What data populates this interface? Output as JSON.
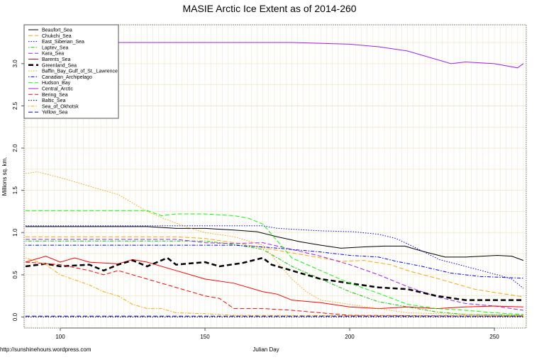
{
  "chart_data": {
    "type": "line",
    "title": "MASIE Arctic Ice Extent as of 2014-260",
    "xlabel": "Julian Day",
    "ylabel": "Millions sq. km.",
    "xlim": [
      87.5,
      261
    ],
    "ylim": [
      -0.13,
      3.46
    ],
    "xticks": [
      100,
      150,
      200,
      250
    ],
    "yticks": [
      0.0,
      0.5,
      1.0,
      1.5,
      2.0,
      2.5,
      3.0
    ],
    "grid": true,
    "legend_position": "top-left",
    "watermark": "http://sunshinehours.wordpress.com",
    "series": [
      {
        "name": "Beaufort_Sea",
        "color": "#000000",
        "style": "solid",
        "points": [
          [
            88,
            1.07
          ],
          [
            130,
            1.07
          ],
          [
            140,
            1.05
          ],
          [
            150,
            1.05
          ],
          [
            160,
            1.03
          ],
          [
            168,
            1.01
          ],
          [
            175,
            0.95
          ],
          [
            183,
            0.89
          ],
          [
            190,
            0.85
          ],
          [
            197,
            0.815
          ],
          [
            205,
            0.83
          ],
          [
            212,
            0.84
          ],
          [
            219,
            0.84
          ],
          [
            225,
            0.78
          ],
          [
            233,
            0.71
          ],
          [
            240,
            0.71
          ],
          [
            251,
            0.73
          ],
          [
            256,
            0.72
          ],
          [
            260,
            0.67
          ]
        ]
      },
      {
        "name": "Chukchi_Sea",
        "color": "#ffa500",
        "style": "dashed",
        "points": [
          [
            88,
            0.95
          ],
          [
            140,
            0.95
          ],
          [
            150,
            0.93
          ],
          [
            160,
            0.88
          ],
          [
            170,
            0.82
          ],
          [
            180,
            0.76
          ],
          [
            190,
            0.7
          ],
          [
            197,
            0.66
          ],
          [
            205,
            0.67
          ],
          [
            214,
            0.62
          ],
          [
            221,
            0.54
          ],
          [
            231,
            0.45
          ],
          [
            243,
            0.33
          ],
          [
            252,
            0.28
          ],
          [
            260,
            0.24
          ]
        ]
      },
      {
        "name": "East_Siberian_Sea",
        "color": "#0000ff",
        "style": "dotted",
        "points": [
          [
            88,
            1.08
          ],
          [
            170,
            1.08
          ],
          [
            175,
            1.05
          ],
          [
            180,
            1.04
          ],
          [
            190,
            1.02
          ],
          [
            201,
            1.01
          ],
          [
            210,
            0.98
          ],
          [
            216,
            0.93
          ],
          [
            221,
            0.85
          ],
          [
            231,
            0.68
          ],
          [
            240,
            0.6
          ],
          [
            251,
            0.5
          ],
          [
            256,
            0.45
          ],
          [
            260,
            0.34
          ]
        ]
      },
      {
        "name": "Laptev_Sea",
        "color": "#00cc00",
        "style": "dotdash",
        "points": [
          [
            88,
            0.9
          ],
          [
            150,
            0.9
          ],
          [
            160,
            0.86
          ],
          [
            170,
            0.8
          ],
          [
            180,
            0.6
          ],
          [
            190,
            0.45
          ],
          [
            200,
            0.3
          ],
          [
            210,
            0.18
          ],
          [
            220,
            0.12
          ],
          [
            230,
            0.06
          ],
          [
            240,
            0.03
          ],
          [
            260,
            0.02
          ]
        ]
      },
      {
        "name": "Kara_Sea",
        "color": "#a020f0",
        "style": "dashed",
        "points": [
          [
            88,
            0.92
          ],
          [
            140,
            0.92
          ],
          [
            150,
            0.88
          ],
          [
            160,
            0.87
          ],
          [
            170,
            0.88
          ],
          [
            180,
            0.8
          ],
          [
            190,
            0.72
          ],
          [
            200,
            0.62
          ],
          [
            210,
            0.5
          ],
          [
            220,
            0.36
          ],
          [
            230,
            0.24
          ],
          [
            240,
            0.16
          ],
          [
            250,
            0.13
          ],
          [
            260,
            0.08
          ]
        ]
      },
      {
        "name": "Barents_Sea",
        "color": "#ff0000",
        "style": "solid",
        "points": [
          [
            88,
            0.65
          ],
          [
            95,
            0.72
          ],
          [
            100,
            0.65
          ],
          [
            105,
            0.7
          ],
          [
            110,
            0.65
          ],
          [
            120,
            0.63
          ],
          [
            125,
            0.68
          ],
          [
            130,
            0.65
          ],
          [
            140,
            0.55
          ],
          [
            150,
            0.45
          ],
          [
            160,
            0.4
          ],
          [
            170,
            0.3
          ],
          [
            175,
            0.27
          ],
          [
            180,
            0.2
          ],
          [
            190,
            0.17
          ],
          [
            200,
            0.12
          ],
          [
            210,
            0.1
          ],
          [
            220,
            0.12
          ],
          [
            230,
            0.1
          ],
          [
            240,
            0.12
          ],
          [
            250,
            0.13
          ],
          [
            260,
            0.12
          ]
        ]
      },
      {
        "name": "Greenland_Sea",
        "color": "#000000",
        "style": "thickdash",
        "points": [
          [
            88,
            0.6
          ],
          [
            95,
            0.63
          ],
          [
            100,
            0.6
          ],
          [
            110,
            0.62
          ],
          [
            115,
            0.55
          ],
          [
            120,
            0.62
          ],
          [
            125,
            0.67
          ],
          [
            130,
            0.6
          ],
          [
            137,
            0.7
          ],
          [
            140,
            0.62
          ],
          [
            150,
            0.65
          ],
          [
            155,
            0.6
          ],
          [
            163,
            0.64
          ],
          [
            170,
            0.7
          ],
          [
            173,
            0.62
          ],
          [
            180,
            0.55
          ],
          [
            190,
            0.45
          ],
          [
            200,
            0.4
          ],
          [
            210,
            0.35
          ],
          [
            220,
            0.33
          ],
          [
            230,
            0.25
          ],
          [
            240,
            0.2
          ],
          [
            250,
            0.2
          ],
          [
            260,
            0.2
          ]
        ]
      },
      {
        "name": "Baffin_Bay_Gulf_of_St._Lawrence",
        "color": "#ffa500",
        "style": "dotted",
        "points": [
          [
            88,
            1.7
          ],
          [
            92,
            1.72
          ],
          [
            100,
            1.65
          ],
          [
            105,
            1.6
          ],
          [
            110,
            1.55
          ],
          [
            120,
            1.45
          ],
          [
            125,
            1.35
          ],
          [
            130,
            1.25
          ],
          [
            137,
            1.15
          ],
          [
            145,
            1.05
          ],
          [
            150,
            1.0
          ],
          [
            160,
            0.95
          ],
          [
            170,
            0.85
          ],
          [
            175,
            0.65
          ],
          [
            180,
            0.45
          ],
          [
            185,
            0.3
          ],
          [
            190,
            0.2
          ],
          [
            200,
            0.15
          ],
          [
            210,
            0.1
          ],
          [
            220,
            0.05
          ],
          [
            240,
            0.03
          ],
          [
            260,
            0.02
          ]
        ]
      },
      {
        "name": "Canadian_Archipelago",
        "color": "#0000ff",
        "style": "dotdash",
        "points": [
          [
            88,
            0.85
          ],
          [
            160,
            0.85
          ],
          [
            170,
            0.83
          ],
          [
            180,
            0.8
          ],
          [
            190,
            0.77
          ],
          [
            200,
            0.73
          ],
          [
            210,
            0.71
          ],
          [
            216,
            0.66
          ],
          [
            225,
            0.6
          ],
          [
            235,
            0.52
          ],
          [
            245,
            0.48
          ],
          [
            260,
            0.46
          ]
        ]
      },
      {
        "name": "Hudson_Bay",
        "color": "#00ff00",
        "style": "dashed",
        "points": [
          [
            88,
            1.26
          ],
          [
            130,
            1.26
          ],
          [
            135,
            1.2
          ],
          [
            140,
            1.22
          ],
          [
            150,
            1.22
          ],
          [
            160,
            1.2
          ],
          [
            165,
            1.17
          ],
          [
            170,
            1.1
          ],
          [
            175,
            0.9
          ],
          [
            180,
            0.7
          ],
          [
            190,
            0.55
          ],
          [
            200,
            0.4
          ],
          [
            210,
            0.28
          ],
          [
            220,
            0.15
          ],
          [
            230,
            0.1
          ],
          [
            240,
            0.08
          ],
          [
            250,
            0.05
          ],
          [
            260,
            0.03
          ]
        ]
      },
      {
        "name": "Central_Arctic",
        "color": "#a020f0",
        "style": "solid",
        "points": [
          [
            88,
            3.22
          ],
          [
            95,
            3.25
          ],
          [
            180,
            3.25
          ],
          [
            200,
            3.23
          ],
          [
            210,
            3.2
          ],
          [
            220,
            3.15
          ],
          [
            230,
            3.05
          ],
          [
            235,
            3.0
          ],
          [
            240,
            3.02
          ],
          [
            250,
            3.0
          ],
          [
            258,
            2.95
          ],
          [
            260,
            3.0
          ]
        ]
      },
      {
        "name": "Bering_Sea",
        "color": "#ff0000",
        "style": "dashed",
        "points": [
          [
            88,
            0.65
          ],
          [
            100,
            0.62
          ],
          [
            110,
            0.55
          ],
          [
            115,
            0.5
          ],
          [
            120,
            0.55
          ],
          [
            130,
            0.45
          ],
          [
            140,
            0.35
          ],
          [
            150,
            0.25
          ],
          [
            155,
            0.22
          ],
          [
            160,
            0.1
          ],
          [
            170,
            0.1
          ],
          [
            180,
            0.08
          ],
          [
            190,
            0.05
          ],
          [
            200,
            0.02
          ],
          [
            260,
            0.01
          ]
        ]
      },
      {
        "name": "Baltic_Sea",
        "color": "#000000",
        "style": "dotted",
        "points": [
          [
            88,
            0.0
          ],
          [
            260,
            0.0
          ]
        ]
      },
      {
        "name": "Sea_of_Okhotsk",
        "color": "#ffa500",
        "style": "dotdash",
        "points": [
          [
            88,
            0.7
          ],
          [
            95,
            0.62
          ],
          [
            100,
            0.5
          ],
          [
            110,
            0.38
          ],
          [
            115,
            0.3
          ],
          [
            120,
            0.25
          ],
          [
            125,
            0.15
          ],
          [
            130,
            0.1
          ],
          [
            135,
            0.1
          ],
          [
            140,
            0.05
          ],
          [
            150,
            0.04
          ],
          [
            160,
            0.02
          ],
          [
            260,
            0.01
          ]
        ]
      },
      {
        "name": "Yellow_Sea",
        "color": "#0000ff",
        "style": "dashed",
        "points": [
          [
            88,
            0.01
          ],
          [
            260,
            0.01
          ]
        ]
      }
    ]
  }
}
